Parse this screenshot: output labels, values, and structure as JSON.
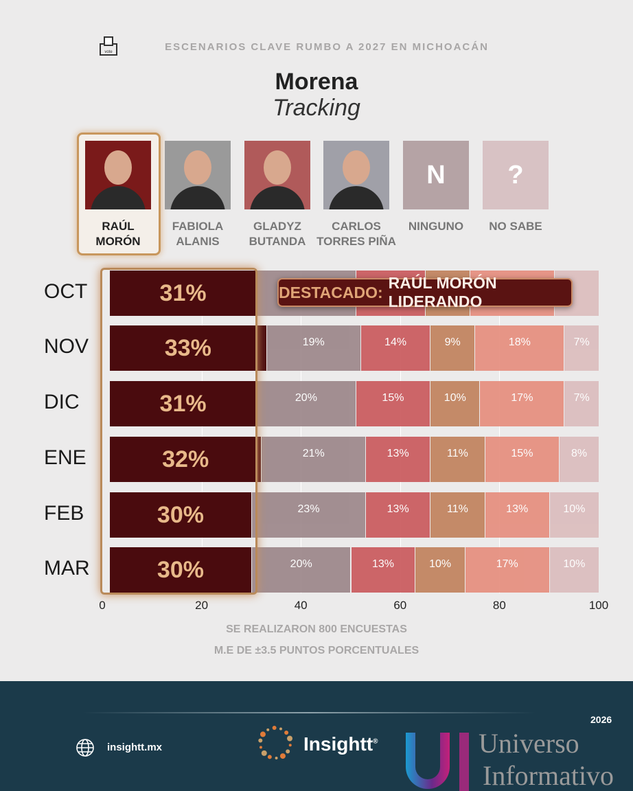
{
  "header": {
    "subtitle": "ESCENARIOS CLAVE RUMBO A 2027 EN MICHOACÁN",
    "ballot_icon_text": "vote",
    "title": "Morena",
    "title2": "Tracking"
  },
  "candidates": [
    {
      "name1": "RAÚL",
      "name2": "MORÓN",
      "photo": "person",
      "bg": "#7a1a1a",
      "highlight": true
    },
    {
      "name1": "FABIOLA",
      "name2": "ALANIS",
      "photo": "person",
      "bg": "#9a9a9a"
    },
    {
      "name1": "GLADYZ",
      "name2": "BUTANDA",
      "photo": "person",
      "bg": "#b05a5a"
    },
    {
      "name1": "CARLOS",
      "name2": "TORRES PIÑA",
      "photo": "person",
      "bg": "#a0a0a8"
    },
    {
      "name1": "NINGUNO",
      "name2": "",
      "photo": "N",
      "bg": "#b5a3a5"
    },
    {
      "name1": "NO SABE",
      "name2": "",
      "photo": "?",
      "bg": "#d8c2c4"
    }
  ],
  "chart_data": {
    "type": "bar",
    "orientation": "horizontal",
    "stacked": true,
    "categories": [
      "OCT",
      "NOV",
      "DIC",
      "ENE",
      "FEB",
      "MAR"
    ],
    "series": [
      {
        "name": "Raúl Morón",
        "color": "#4a0b0e",
        "values": [
          31,
          33,
          31,
          32,
          30,
          30
        ]
      },
      {
        "name": "Fabiola Alanis",
        "color": "#9b8588",
        "values": [
          20,
          19,
          20,
          21,
          23,
          20
        ]
      },
      {
        "name": "Gladyz Butanda",
        "color": "#c9575a",
        "values": [
          14,
          14,
          15,
          13,
          13,
          13
        ]
      },
      {
        "name": "Carlos Torres Piña",
        "color": "#c0805a",
        "values": [
          9,
          9,
          10,
          11,
          11,
          10
        ]
      },
      {
        "name": "Ninguno",
        "color": "#e68c7c",
        "values": [
          17,
          18,
          17,
          15,
          13,
          17
        ]
      },
      {
        "name": "No sabe",
        "color": "#dbbcbd",
        "values": [
          9,
          7,
          7,
          8,
          10,
          10
        ]
      }
    ],
    "xlim": [
      0,
      100
    ],
    "xticks": [
      0,
      20,
      40,
      60,
      80,
      100
    ],
    "grid": true,
    "annotation": {
      "key": "DESTACADO:",
      "value": "RAÚL MORÓN LIDERANDO"
    }
  },
  "notes": {
    "line1": "SE REALIZARON 800 ENCUESTAS",
    "line2": "M.E DE ±3.5 PUNTOS PORCENTUALES"
  },
  "footer": {
    "site": "insightt.mx",
    "brand": "Insightt",
    "reg": "®",
    "watermark1": "Universo",
    "watermark2": "Informativo",
    "year": "2026"
  }
}
